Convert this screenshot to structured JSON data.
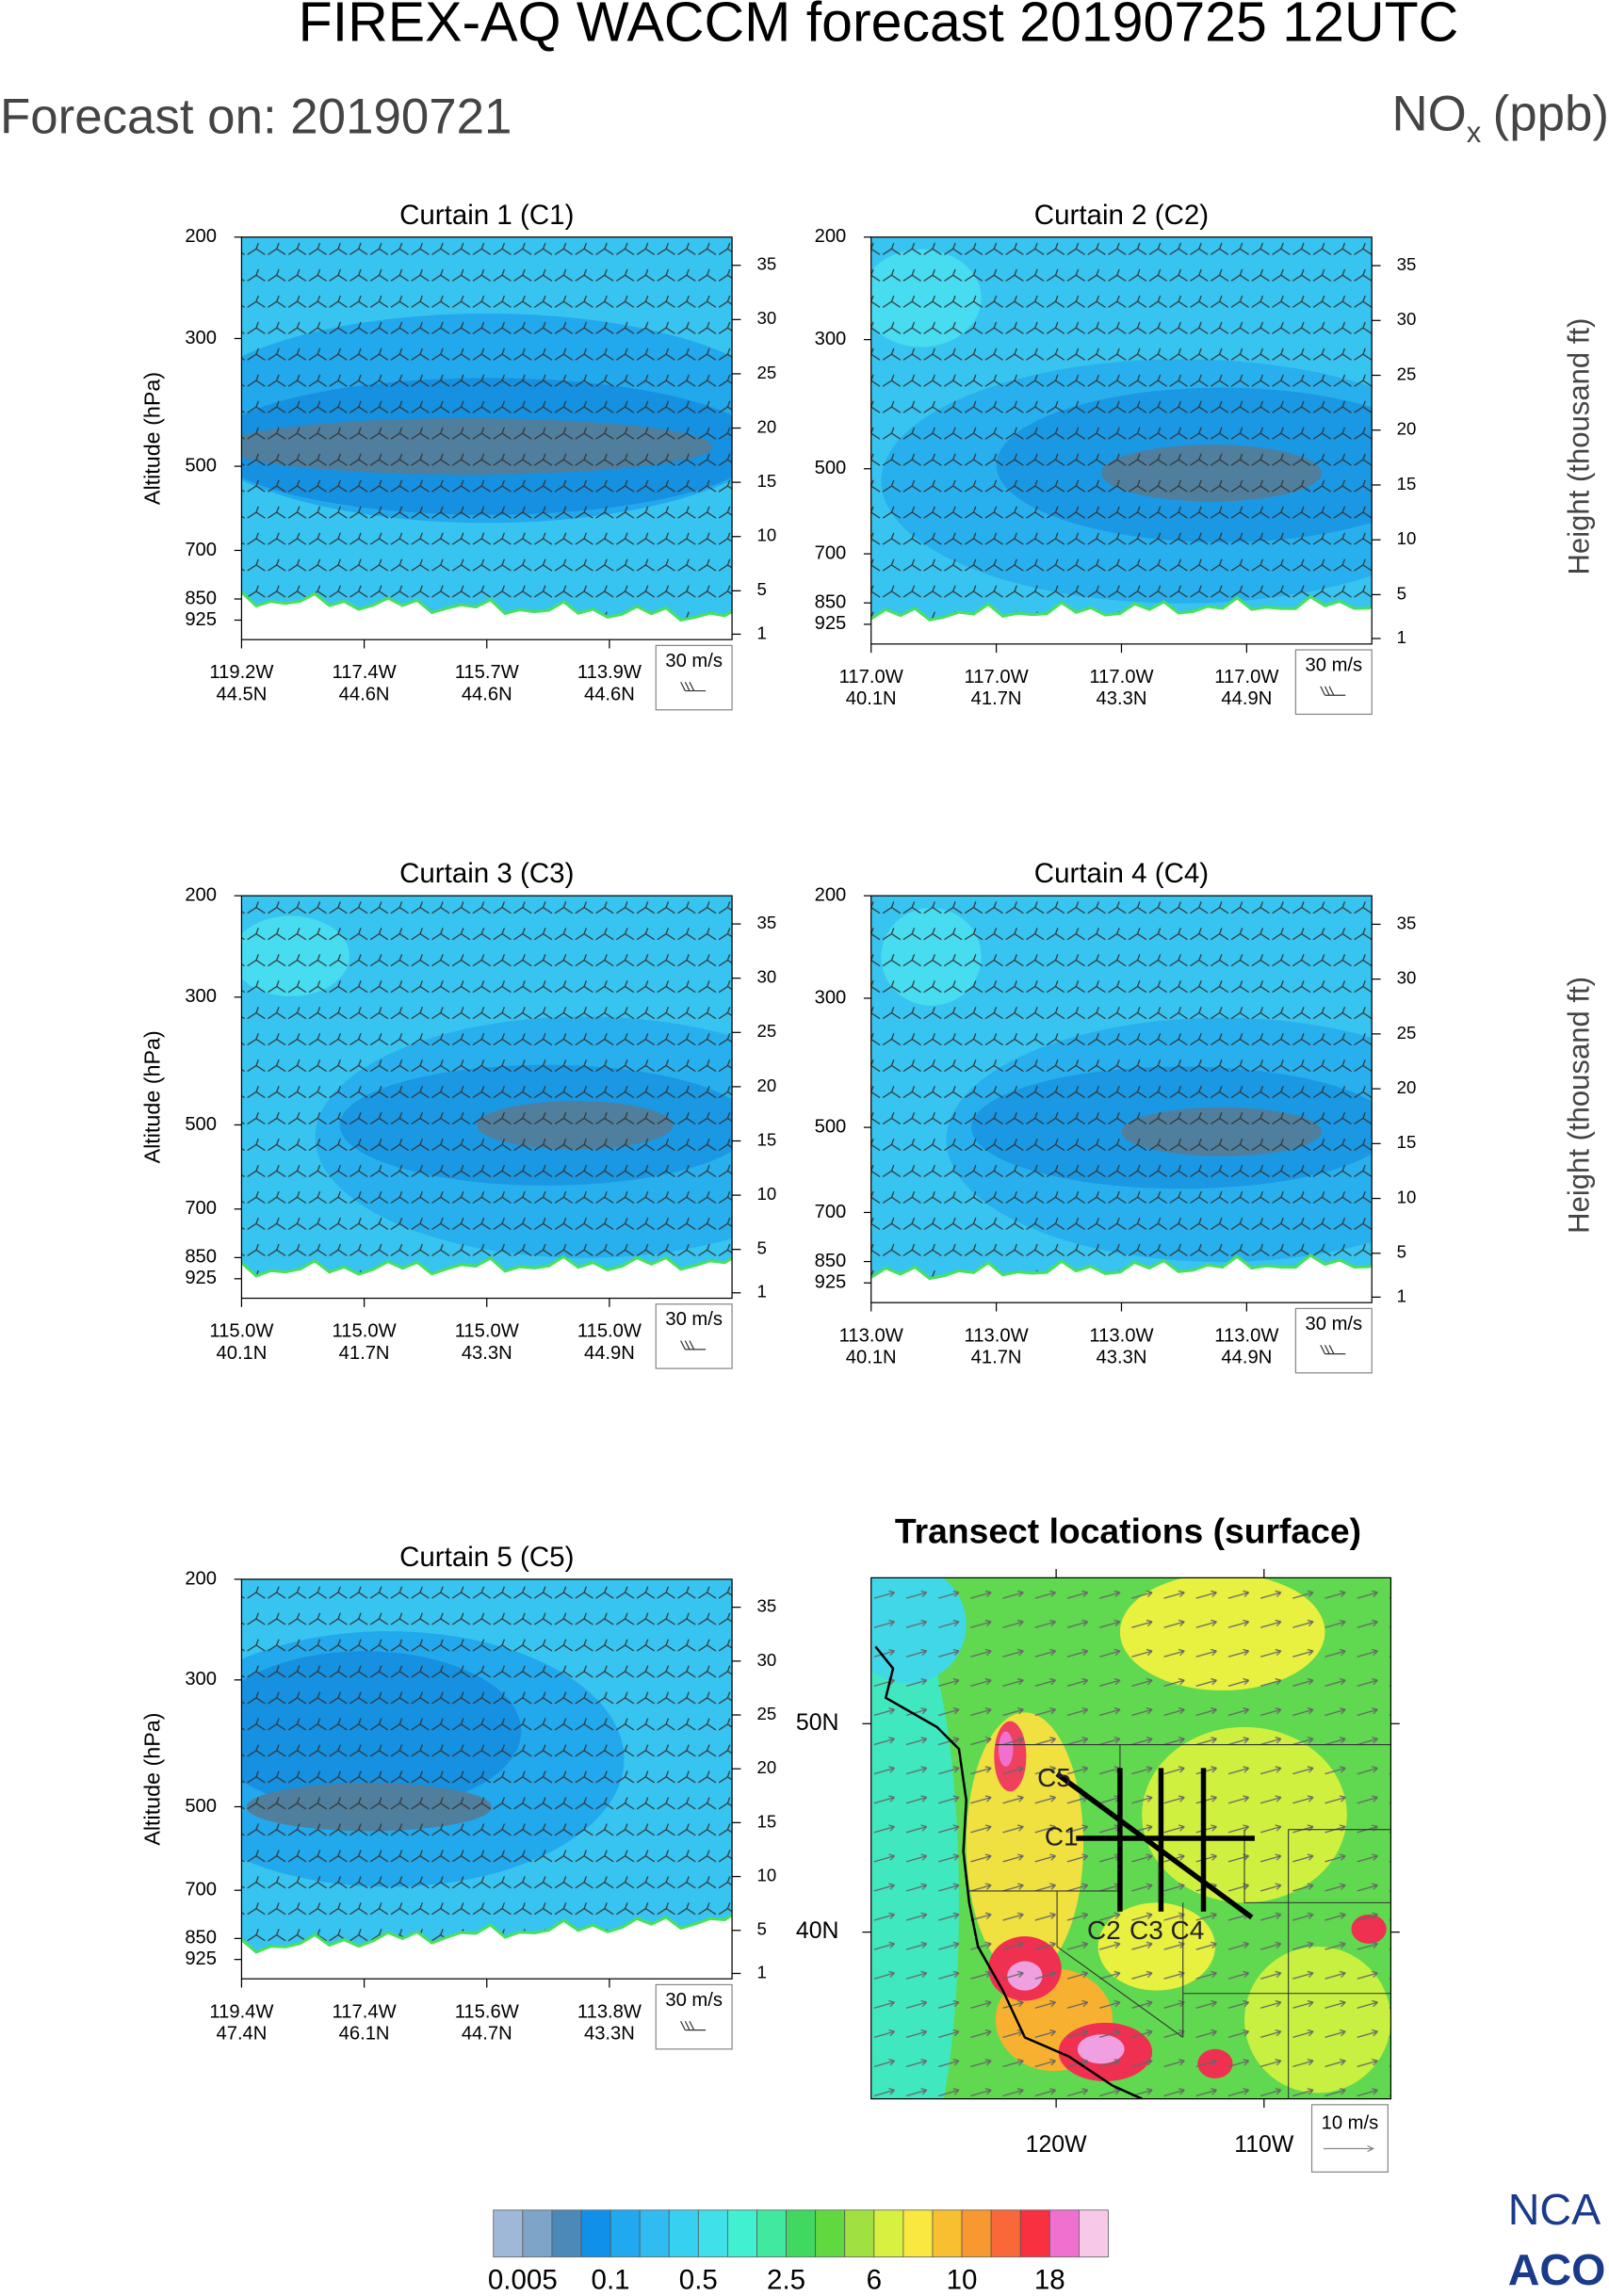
{
  "header": {
    "title": "FIREX-AQ WACCM forecast 20190725 12UTC",
    "forecast": "Forecast on: 20190721",
    "species": "NO",
    "species_sub": "x",
    "units": "(ppb)"
  },
  "chart_data": [
    {
      "type": "contour",
      "title": "Curtain 1 (C1)",
      "ylabel": "Altitude (hPa)",
      "ylim": [
        1000,
        200
      ],
      "log_y": true,
      "yticks": [
        200,
        300,
        500,
        700,
        850,
        925
      ],
      "y2lim": [
        0.5,
        37.6
      ],
      "y2ticks": [
        1,
        5,
        10,
        15,
        20,
        25,
        30,
        35
      ],
      "x_lon": [
        "119.2W",
        "117.4W",
        "115.7W",
        "113.9W"
      ],
      "x_lat": [
        "44.5N",
        "44.6N",
        "44.6N",
        "44.6N"
      ],
      "wind_key": "30 m/s"
    },
    {
      "type": "contour",
      "title": "Curtain 2 (C2)",
      "y2label": "Height (thousand ft)",
      "ylim": [
        1000,
        200
      ],
      "log_y": true,
      "yticks": [
        200,
        300,
        500,
        700,
        850,
        925
      ],
      "y2lim": [
        0.5,
        37.6
      ],
      "y2ticks": [
        1,
        5,
        10,
        15,
        20,
        25,
        30,
        35
      ],
      "x_lon": [
        "117.0W",
        "117.0W",
        "117.0W",
        "117.0W"
      ],
      "x_lat": [
        "40.1N",
        "41.7N",
        "43.3N",
        "44.9N"
      ],
      "wind_key": "30 m/s"
    },
    {
      "type": "contour",
      "title": "Curtain 3 (C3)",
      "ylabel": "Altitude (hPa)",
      "ylim": [
        1000,
        200
      ],
      "log_y": true,
      "yticks": [
        200,
        300,
        500,
        700,
        850,
        925
      ],
      "y2lim": [
        0.5,
        37.6
      ],
      "y2ticks": [
        1,
        5,
        10,
        15,
        20,
        25,
        30,
        35
      ],
      "x_lon": [
        "115.0W",
        "115.0W",
        "115.0W",
        "115.0W"
      ],
      "x_lat": [
        "40.1N",
        "41.7N",
        "43.3N",
        "44.9N"
      ],
      "wind_key": "30 m/s"
    },
    {
      "type": "contour",
      "title": "Curtain 4 (C4)",
      "y2label": "Height (thousand ft)",
      "ylim": [
        1000,
        200
      ],
      "log_y": true,
      "yticks": [
        200,
        300,
        500,
        700,
        850,
        925
      ],
      "y2lim": [
        0.5,
        37.6
      ],
      "y2ticks": [
        1,
        5,
        10,
        15,
        20,
        25,
        30,
        35
      ],
      "x_lon": [
        "113.0W",
        "113.0W",
        "113.0W",
        "113.0W"
      ],
      "x_lat": [
        "40.1N",
        "41.7N",
        "43.3N",
        "44.9N"
      ],
      "wind_key": "30 m/s"
    },
    {
      "type": "contour",
      "title": "Curtain 5 (C5)",
      "ylabel": "Altitude (hPa)",
      "ylim": [
        1000,
        200
      ],
      "log_y": true,
      "yticks": [
        200,
        300,
        500,
        700,
        850,
        925
      ],
      "y2lim": [
        0.5,
        37.6
      ],
      "y2ticks": [
        1,
        5,
        10,
        15,
        20,
        25,
        30,
        35
      ],
      "x_lon": [
        "119.4W",
        "117.4W",
        "115.6W",
        "113.8W"
      ],
      "x_lat": [
        "47.4N",
        "46.1N",
        "44.7N",
        "43.3N"
      ],
      "wind_key": "30 m/s"
    },
    {
      "type": "map",
      "title": "Transect locations (surface)",
      "xlim": [
        -128.9,
        -103.9
      ],
      "ylim": [
        32,
        57
      ],
      "xticks": [
        {
          "value": -120,
          "label": "120W"
        },
        {
          "value": -110,
          "label": "110W"
        }
      ],
      "yticks": [
        {
          "value": 40,
          "label": "40N"
        },
        {
          "value": 50,
          "label": "50N"
        }
      ],
      "transect_labels": [
        "C1",
        "C2",
        "C3",
        "C4",
        "C5"
      ],
      "wind_key": "10 m/s"
    }
  ],
  "colorbar": {
    "colors": [
      "#a0b8d8",
      "#7ea4c8",
      "#4c88b8",
      "#1090e8",
      "#20a8f0",
      "#30bcf0",
      "#38d0f0",
      "#40e0e8",
      "#40f0d0",
      "#40e8a0",
      "#40d860",
      "#60d840",
      "#a0e040",
      "#d8f040",
      "#f8e840",
      "#f8c030",
      "#f89830",
      "#f86838",
      "#f83040",
      "#f070d0",
      "#f8c8e8"
    ],
    "ticks": [
      0.005,
      0.1,
      0.5,
      2.5,
      6,
      10,
      18
    ]
  },
  "logo": {
    "line1": "NCA",
    "line2": "ACO"
  }
}
